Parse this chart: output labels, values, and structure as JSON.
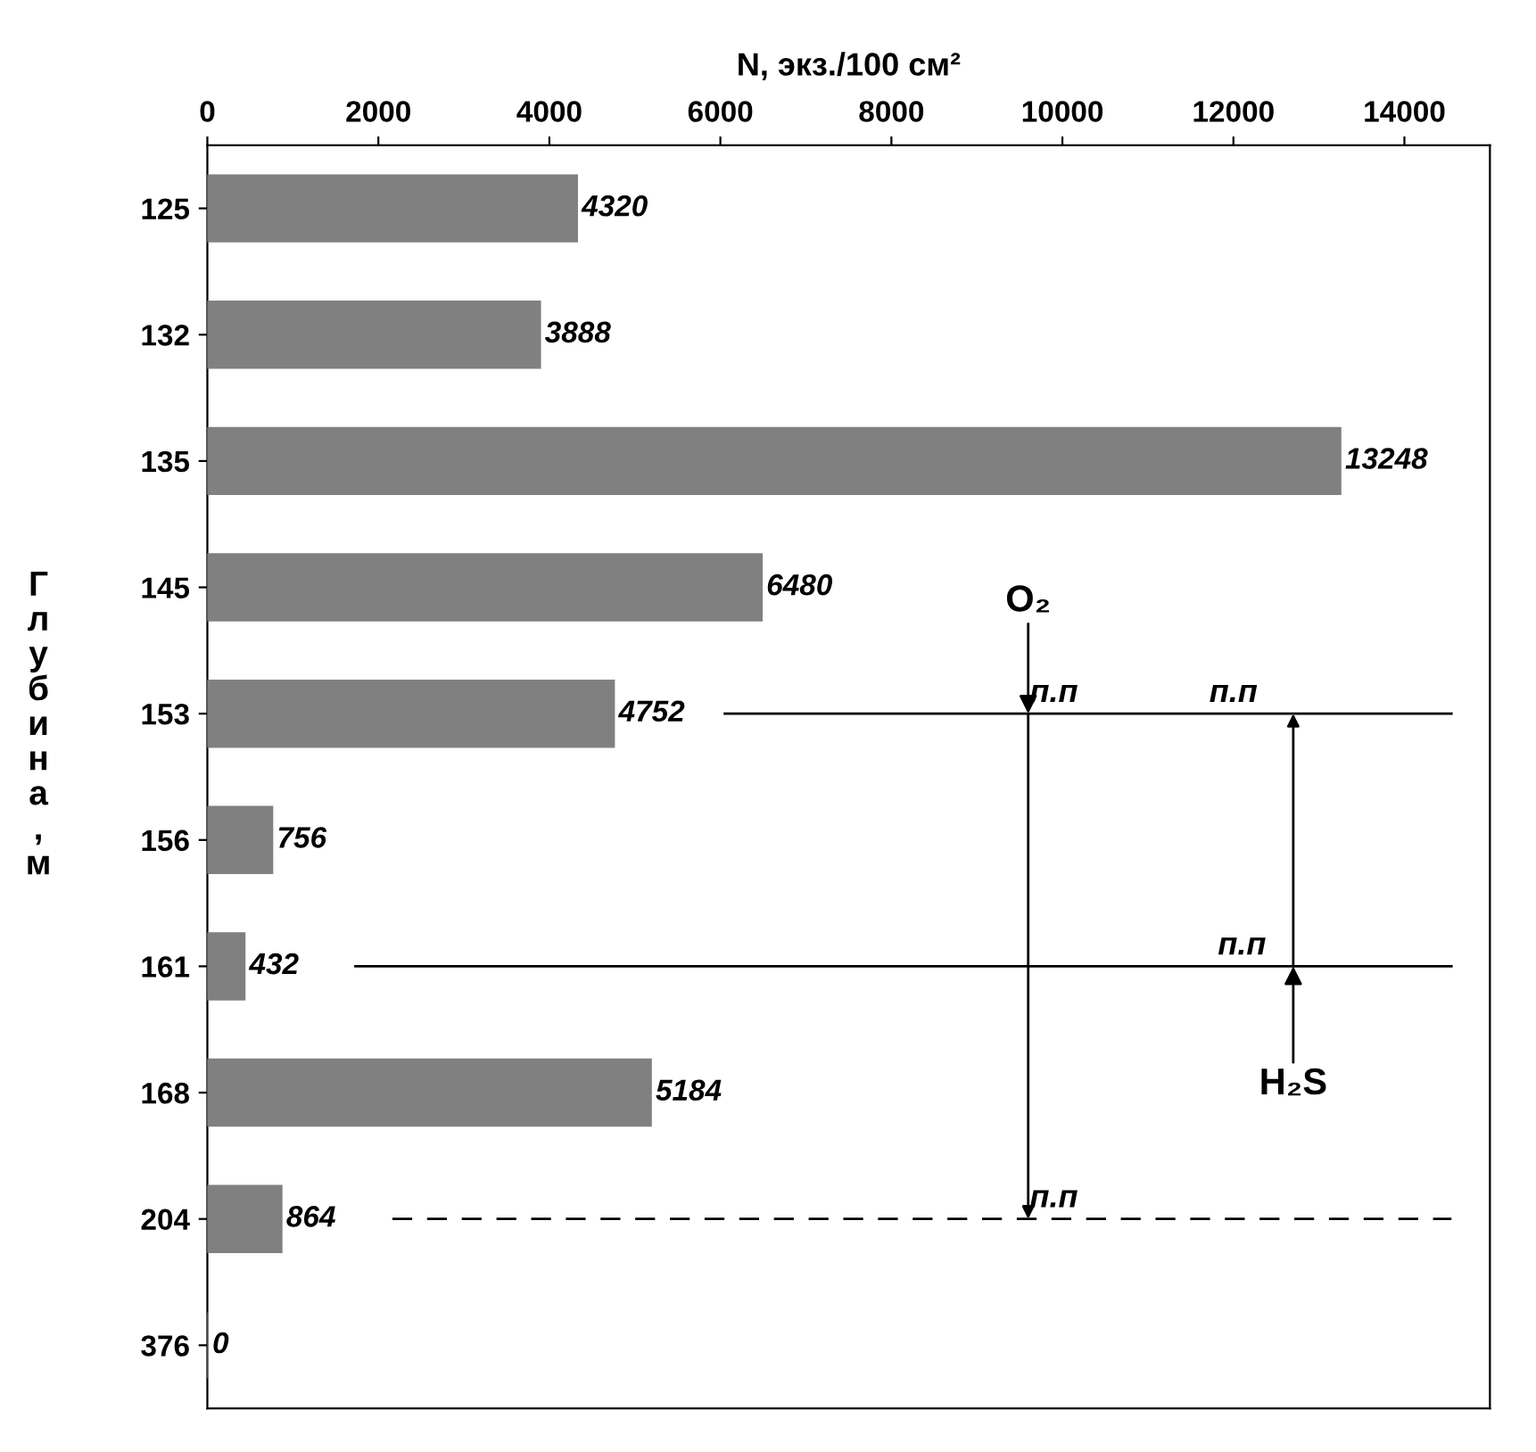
{
  "chart_data": {
    "type": "bar",
    "orientation": "horizontal",
    "xlabel": "N, экз./100 см²",
    "ylabel": "Глубина, м",
    "categories": [
      "125",
      "132",
      "135",
      "145",
      "153",
      "156",
      "161",
      "168",
      "204",
      "376"
    ],
    "values": [
      4320,
      3888,
      13248,
      6480,
      4752,
      756,
      432,
      5184,
      864,
      0
    ],
    "color": "#808080",
    "data_labels": true,
    "xlim": [
      0,
      15000
    ],
    "xticks": [
      0,
      2000,
      4000,
      6000,
      8000,
      10000,
      12000,
      14000
    ],
    "ref_lines": [
      {
        "axis": "y",
        "value": "153",
        "line_style": "solid"
      },
      {
        "axis": "y",
        "value": "161",
        "line_style": "solid"
      },
      {
        "axis": "y",
        "value": "204",
        "line_style": "dashed"
      }
    ],
    "annotations": [
      {
        "text": "O₂",
        "x": 9600,
        "y": "153"
      },
      {
        "text": "п.п",
        "x": 9900,
        "y": "153"
      },
      {
        "text": "п.п",
        "x": 12000,
        "y": "153"
      },
      {
        "text": "п.п",
        "x": 12100,
        "y": "161"
      },
      {
        "text": "H₂S",
        "x": 12700,
        "y": "161"
      },
      {
        "text": "п.п",
        "x": 9900,
        "y": "204"
      }
    ]
  }
}
